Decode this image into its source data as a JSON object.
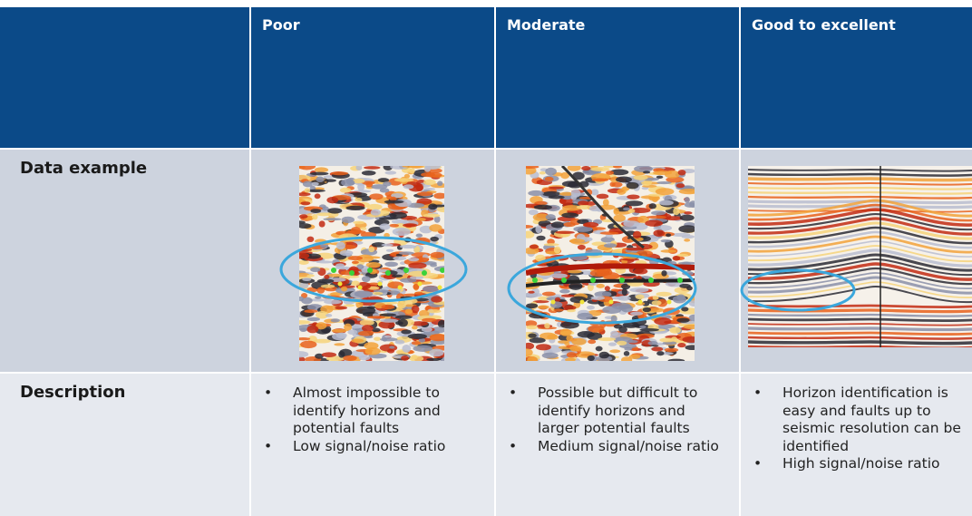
{
  "header": {
    "columns": [
      "Poor",
      "Moderate",
      "Good to excellent"
    ]
  },
  "rows": [
    {
      "label": "Data example"
    },
    {
      "label": "Description",
      "cells": [
        [
          "Almost impossible to identify horizons and potential faults",
          "Low signal/noise ratio"
        ],
        [
          "Possible but difficult to identify horizons and larger potential faults",
          "Medium signal/noise ratio"
        ],
        [
          "Horizon identification is easy and faults up to seismic resolution can be identified",
          "High signal/noise ratio"
        ]
      ]
    }
  ]
}
